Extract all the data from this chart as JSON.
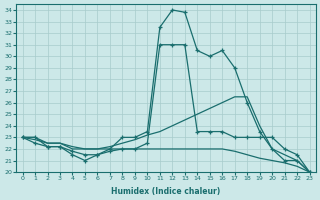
{
  "xlabel": "Humidex (Indice chaleur)",
  "background_color": "#cce8e8",
  "grid_color": "#a8cccc",
  "line_color": "#1a6e6e",
  "xlim": [
    -0.5,
    23.5
  ],
  "ylim": [
    20,
    34.5
  ],
  "yticks": [
    20,
    21,
    22,
    23,
    24,
    25,
    26,
    27,
    28,
    29,
    30,
    31,
    32,
    33,
    34
  ],
  "xticks": [
    0,
    1,
    2,
    3,
    4,
    5,
    6,
    7,
    8,
    9,
    10,
    11,
    12,
    13,
    14,
    15,
    16,
    17,
    18,
    19,
    20,
    21,
    22,
    23
  ],
  "series": [
    {
      "x": [
        0,
        1,
        2,
        3,
        4,
        5,
        6,
        7,
        8,
        9,
        10,
        11,
        12,
        13,
        14,
        15,
        16,
        17,
        18,
        19,
        20,
        21,
        22,
        23
      ],
      "y": [
        23.0,
        23.0,
        22.2,
        22.2,
        21.5,
        21.0,
        21.5,
        22.0,
        23.0,
        23.0,
        23.5,
        32.5,
        34.0,
        33.8,
        30.5,
        30.0,
        30.5,
        29.0,
        26.0,
        23.5,
        22.0,
        21.0,
        21.0,
        20.0
      ],
      "marker": "+"
    },
    {
      "x": [
        0,
        1,
        2,
        3,
        4,
        5,
        6,
        7,
        8,
        9,
        10,
        11,
        12,
        13,
        14,
        15,
        16,
        17,
        18,
        19,
        20,
        21,
        22,
        23
      ],
      "y": [
        23.0,
        22.5,
        22.2,
        22.2,
        21.8,
        21.5,
        21.5,
        21.8,
        22.0,
        22.0,
        22.5,
        31.0,
        31.0,
        31.0,
        23.5,
        23.5,
        23.5,
        23.0,
        23.0,
        23.0,
        23.0,
        22.0,
        21.5,
        20.0
      ],
      "marker": "+"
    },
    {
      "x": [
        0,
        1,
        2,
        3,
        4,
        5,
        6,
        7,
        8,
        9,
        10,
        11,
        12,
        13,
        14,
        15,
        16,
        17,
        18,
        19,
        20,
        21,
        22,
        23
      ],
      "y": [
        23.0,
        23.0,
        22.5,
        22.5,
        22.0,
        22.0,
        22.0,
        22.2,
        22.5,
        22.8,
        23.2,
        23.5,
        24.0,
        24.5,
        25.0,
        25.5,
        26.0,
        26.5,
        26.5,
        24.0,
        22.0,
        21.5,
        21.0,
        20.0
      ],
      "marker": null
    },
    {
      "x": [
        0,
        1,
        2,
        3,
        4,
        5,
        6,
        7,
        8,
        9,
        10,
        11,
        12,
        13,
        14,
        15,
        16,
        17,
        18,
        19,
        20,
        21,
        22,
        23
      ],
      "y": [
        23.0,
        22.8,
        22.5,
        22.5,
        22.2,
        22.0,
        22.0,
        22.0,
        22.0,
        22.0,
        22.0,
        22.0,
        22.0,
        22.0,
        22.0,
        22.0,
        22.0,
        21.8,
        21.5,
        21.2,
        21.0,
        20.8,
        20.5,
        20.0
      ],
      "marker": null
    }
  ]
}
